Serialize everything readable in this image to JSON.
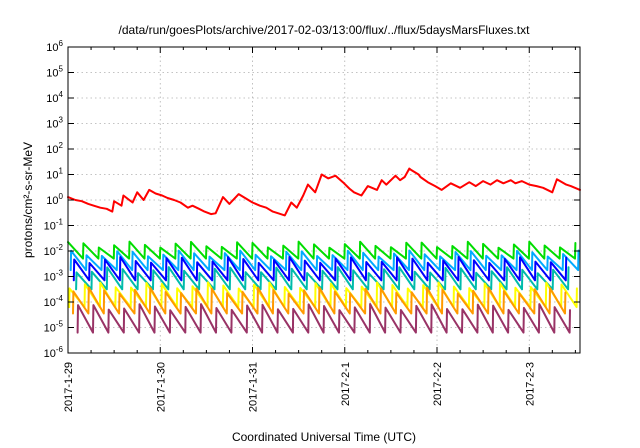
{
  "chart_data": {
    "type": "line",
    "title": "/data/run/goesPlots/archive/2017-02-03/13:00/flux/../flux/5daysMarsFluxes.txt",
    "xlabel": "Coordinated Universal Time (UTC)",
    "ylabel": "protons/cm²-s-sr-MeV",
    "y_scale": "log",
    "ylim": [
      1e-06,
      1000000.0
    ],
    "xlim": [
      0,
      5.55
    ],
    "y_ticks": [
      {
        "value": 1e-06,
        "base": "10",
        "exp": "-6"
      },
      {
        "value": 1e-05,
        "base": "10",
        "exp": "-5"
      },
      {
        "value": 0.0001,
        "base": "10",
        "exp": "-4"
      },
      {
        "value": 0.001,
        "base": "10",
        "exp": "-3"
      },
      {
        "value": 0.01,
        "base": "10",
        "exp": "-2"
      },
      {
        "value": 0.1,
        "base": "10",
        "exp": "-1"
      },
      {
        "value": 1,
        "base": "10",
        "exp": "0"
      },
      {
        "value": 10,
        "base": "10",
        "exp": "1"
      },
      {
        "value": 100,
        "base": "10",
        "exp": "2"
      },
      {
        "value": 1000,
        "base": "10",
        "exp": "3"
      },
      {
        "value": 10000,
        "base": "10",
        "exp": "4"
      },
      {
        "value": 100000,
        "base": "10",
        "exp": "5"
      },
      {
        "value": 1000000,
        "base": "10",
        "exp": "6"
      }
    ],
    "x_ticks": [
      {
        "value": 0,
        "label": "2017-1-29"
      },
      {
        "value": 1,
        "label": "2017-1-30"
      },
      {
        "value": 2,
        "label": "2017-1-31"
      },
      {
        "value": 3,
        "label": "2017-2-1"
      },
      {
        "value": 4,
        "label": "2017-2-2"
      },
      {
        "value": 5,
        "label": "2017-2-3"
      }
    ],
    "grid": true,
    "series": [
      {
        "color": "#ff0000",
        "x": [
          0.0,
          0.08,
          0.15,
          0.22,
          0.28,
          0.35,
          0.42,
          0.48,
          0.5,
          0.58,
          0.6,
          0.7,
          0.75,
          0.82,
          0.88,
          0.95,
          1.02,
          1.08,
          1.15,
          1.22,
          1.3,
          1.35,
          1.42,
          1.48,
          1.55,
          1.6,
          1.68,
          1.75,
          1.85,
          1.92,
          2.0,
          2.08,
          2.15,
          2.22,
          2.28,
          2.35,
          2.42,
          2.48,
          2.55,
          2.6,
          2.68,
          2.75,
          2.82,
          2.9,
          2.98,
          3.05,
          3.1,
          3.18,
          3.25,
          3.35,
          3.4,
          3.45,
          3.55,
          3.6,
          3.65,
          3.7,
          3.72,
          3.8,
          3.82,
          3.9,
          3.98,
          4.05,
          4.15,
          4.25,
          4.35,
          4.42,
          4.5,
          4.58,
          4.65,
          4.72,
          4.8,
          4.85,
          4.92,
          5.0,
          5.08,
          5.15,
          5.25,
          5.3,
          5.4,
          5.45,
          5.55
        ],
        "values": [
          1.3,
          1.0,
          0.9,
          0.7,
          0.6,
          0.5,
          0.45,
          0.35,
          0.9,
          0.6,
          1.5,
          0.8,
          2.0,
          1.0,
          2.5,
          1.8,
          1.5,
          1.2,
          1.0,
          0.8,
          0.5,
          0.6,
          0.45,
          0.35,
          0.28,
          0.3,
          1.3,
          0.7,
          1.7,
          1.2,
          0.8,
          0.6,
          0.5,
          0.35,
          0.3,
          0.25,
          0.8,
          0.5,
          1.5,
          4.0,
          2.0,
          10,
          7.0,
          9.0,
          5.0,
          2.8,
          2.0,
          1.5,
          3.5,
          2.5,
          6.0,
          4.0,
          9.0,
          6.0,
          8.0,
          17,
          15,
          10,
          8.0,
          5.0,
          3.5,
          2.5,
          4.5,
          3.0,
          5.0,
          3.5,
          5.5,
          4.0,
          6.0,
          4.5,
          6.0,
          4.5,
          5.5,
          4.0,
          3.5,
          3.0,
          2.0,
          6.5,
          4.0,
          3.5,
          2.5
        ]
      },
      {
        "color": "#00dd00",
        "amp_exp": -1.75,
        "drop": 0.55,
        "phase": 0.0
      },
      {
        "color": "#00aaff",
        "amp_exp": -2.1,
        "drop": 0.65,
        "phase": 0.2
      },
      {
        "color": "#0000ff",
        "amp_exp": -2.35,
        "drop": 0.8,
        "phase": 0.4
      },
      {
        "color": "#00bbaa",
        "amp_exp": -2.75,
        "drop": 0.75,
        "phase": 0.55
      },
      {
        "color": "#ffff00",
        "amp_exp": -3.35,
        "drop": 0.85,
        "phase": 0.1
      },
      {
        "color": "#ff9900",
        "amp_exp": -3.55,
        "drop": 0.9,
        "phase": 0.35
      },
      {
        "color": "#993366",
        "amp_exp": -4.2,
        "drop": 1.0,
        "phase": 0.65
      }
    ]
  }
}
